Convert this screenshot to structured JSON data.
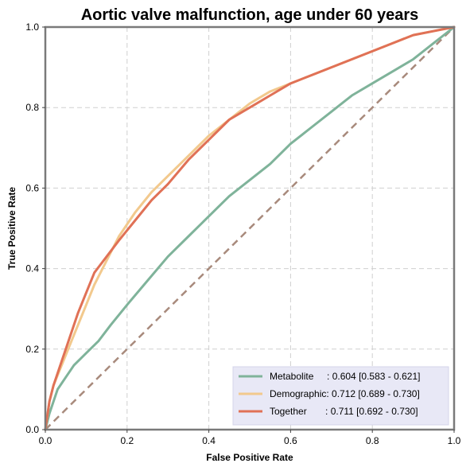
{
  "chart_data": {
    "type": "line",
    "title": "Aortic valve malfunction, age under 60 years",
    "xlabel": "False Positive Rate",
    "ylabel": "True Positive Rate",
    "xlim": [
      0,
      1
    ],
    "ylim": [
      0,
      1
    ],
    "xticks": [
      "0.0",
      "0.2",
      "0.4",
      "0.6",
      "0.8",
      "1.0"
    ],
    "yticks": [
      "0.0",
      "0.2",
      "0.4",
      "0.6",
      "0.8",
      "1.0"
    ],
    "grid": true,
    "legend_position": "bottom-right",
    "series": [
      {
        "name": "Metabolite",
        "legend_label": "Metabolite     : 0.604 [0.583 - 0.621]",
        "color": "#7fb39a",
        "x": [
          0,
          0.01,
          0.02,
          0.03,
          0.05,
          0.07,
          0.1,
          0.13,
          0.16,
          0.2,
          0.25,
          0.3,
          0.35,
          0.4,
          0.45,
          0.5,
          0.55,
          0.6,
          0.65,
          0.7,
          0.75,
          0.8,
          0.85,
          0.9,
          0.95,
          1.0
        ],
        "y": [
          0,
          0.04,
          0.07,
          0.1,
          0.13,
          0.16,
          0.19,
          0.22,
          0.26,
          0.31,
          0.37,
          0.43,
          0.48,
          0.53,
          0.58,
          0.62,
          0.66,
          0.71,
          0.75,
          0.79,
          0.83,
          0.86,
          0.89,
          0.92,
          0.96,
          1.0
        ]
      },
      {
        "name": "Demographic",
        "legend_label": "Demographic: 0.712 [0.689 - 0.730]",
        "color": "#f2c98d",
        "x": [
          0,
          0.01,
          0.02,
          0.04,
          0.06,
          0.08,
          0.1,
          0.12,
          0.15,
          0.18,
          0.22,
          0.26,
          0.3,
          0.35,
          0.4,
          0.45,
          0.5,
          0.55,
          0.6,
          0.65,
          0.7,
          0.75,
          0.8,
          0.85,
          0.9,
          0.95,
          1.0
        ],
        "y": [
          0,
          0.07,
          0.11,
          0.16,
          0.21,
          0.26,
          0.31,
          0.36,
          0.42,
          0.48,
          0.54,
          0.59,
          0.63,
          0.68,
          0.73,
          0.77,
          0.81,
          0.84,
          0.86,
          0.88,
          0.9,
          0.92,
          0.94,
          0.96,
          0.98,
          0.99,
          1.0
        ]
      },
      {
        "name": "Together",
        "legend_label": "Together       : 0.711 [0.692 - 0.730]",
        "color": "#e07156",
        "x": [
          0,
          0.01,
          0.02,
          0.04,
          0.06,
          0.08,
          0.1,
          0.12,
          0.15,
          0.18,
          0.22,
          0.26,
          0.3,
          0.35,
          0.4,
          0.45,
          0.5,
          0.55,
          0.6,
          0.65,
          0.7,
          0.75,
          0.8,
          0.85,
          0.9,
          0.95,
          1.0
        ],
        "y": [
          0,
          0.07,
          0.11,
          0.17,
          0.23,
          0.29,
          0.34,
          0.39,
          0.43,
          0.47,
          0.52,
          0.57,
          0.61,
          0.67,
          0.72,
          0.77,
          0.8,
          0.83,
          0.86,
          0.88,
          0.9,
          0.92,
          0.94,
          0.96,
          0.98,
          0.99,
          1.0
        ]
      }
    ],
    "reference_line": {
      "x": [
        0,
        1
      ],
      "y": [
        0,
        1
      ],
      "color": "#a88a7c",
      "style": "dashed"
    }
  }
}
